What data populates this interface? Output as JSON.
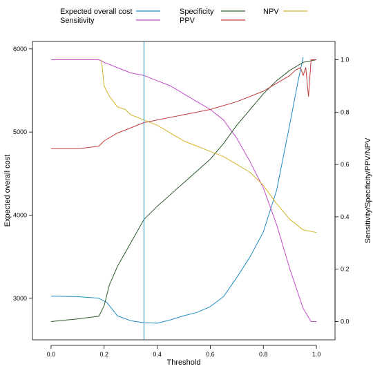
{
  "chart_data": {
    "type": "line",
    "xlabel": "Threshold",
    "ylabel_left": "Expected overall cost",
    "ylabel_right": "Sensitivity/Specificity/PPV/NPV",
    "xlim": [
      -0.07,
      1.07
    ],
    "ylim_left": [
      2500,
      6090
    ],
    "ylim_right": [
      -0.07,
      1.07
    ],
    "x_ticks": [
      "0.0",
      "0.2",
      "0.4",
      "0.6",
      "0.8",
      "1.0"
    ],
    "y_left_ticks": [
      "3000",
      "4000",
      "5000",
      "6000"
    ],
    "y_right_ticks": [
      "0.0",
      "0.2",
      "0.4",
      "0.6",
      "0.8",
      "1.0"
    ],
    "grid": false,
    "legend_position": "top",
    "vertical_line": {
      "x": 0.35,
      "color": "#1f8bc4"
    },
    "series": [
      {
        "name": "Expected overall cost",
        "axis": "left",
        "color": "#1f8bc4",
        "x": [
          0.0,
          0.1,
          0.18,
          0.21,
          0.25,
          0.3,
          0.35,
          0.4,
          0.45,
          0.5,
          0.55,
          0.6,
          0.65,
          0.7,
          0.75,
          0.8,
          0.85,
          0.9,
          0.93,
          0.95
        ],
        "y": [
          3025,
          3020,
          3000,
          2950,
          2790,
          2730,
          2705,
          2700,
          2740,
          2790,
          2830,
          2900,
          3020,
          3250,
          3500,
          3800,
          4300,
          5100,
          5600,
          5900
        ]
      },
      {
        "name": "Sensitivity",
        "axis": "right",
        "color": "#c24bc7",
        "x": [
          0.0,
          0.18,
          0.2,
          0.25,
          0.3,
          0.35,
          0.4,
          0.45,
          0.5,
          0.55,
          0.6,
          0.65,
          0.7,
          0.75,
          0.8,
          0.85,
          0.9,
          0.95,
          0.98,
          1.0
        ],
        "y": [
          1.0,
          1.0,
          0.99,
          0.97,
          0.95,
          0.94,
          0.92,
          0.9,
          0.87,
          0.84,
          0.81,
          0.77,
          0.7,
          0.61,
          0.51,
          0.37,
          0.2,
          0.05,
          0.0,
          0.0
        ]
      },
      {
        "name": "Specificity",
        "axis": "right",
        "color": "#2d5a2b",
        "x": [
          0.0,
          0.1,
          0.18,
          0.2,
          0.22,
          0.25,
          0.3,
          0.35,
          0.4,
          0.5,
          0.6,
          0.65,
          0.7,
          0.75,
          0.8,
          0.85,
          0.9,
          0.95,
          1.0
        ],
        "y": [
          0.0,
          0.01,
          0.02,
          0.06,
          0.14,
          0.21,
          0.3,
          0.39,
          0.44,
          0.53,
          0.62,
          0.68,
          0.75,
          0.81,
          0.87,
          0.92,
          0.96,
          0.99,
          1.0
        ]
      },
      {
        "name": "PPV",
        "axis": "right",
        "color": "#c23a3a",
        "x": [
          0.0,
          0.1,
          0.18,
          0.2,
          0.25,
          0.3,
          0.35,
          0.4,
          0.5,
          0.6,
          0.7,
          0.8,
          0.85,
          0.9,
          0.92,
          0.94,
          0.95,
          0.96,
          0.97,
          0.98,
          1.0
        ],
        "y": [
          0.66,
          0.66,
          0.67,
          0.69,
          0.72,
          0.74,
          0.76,
          0.77,
          0.79,
          0.81,
          0.84,
          0.88,
          0.91,
          0.94,
          0.96,
          0.97,
          0.94,
          0.97,
          0.86,
          1.0,
          1.0
        ]
      },
      {
        "name": "NPV",
        "axis": "right",
        "color": "#d4b52a",
        "x": [
          0.19,
          0.2,
          0.22,
          0.25,
          0.28,
          0.3,
          0.35,
          0.4,
          0.45,
          0.5,
          0.55,
          0.6,
          0.65,
          0.7,
          0.75,
          0.8,
          0.85,
          0.9,
          0.95,
          1.0
        ],
        "y": [
          1.0,
          0.9,
          0.86,
          0.82,
          0.81,
          0.79,
          0.77,
          0.75,
          0.72,
          0.69,
          0.67,
          0.65,
          0.63,
          0.6,
          0.57,
          0.52,
          0.45,
          0.39,
          0.35,
          0.34
        ]
      }
    ]
  }
}
